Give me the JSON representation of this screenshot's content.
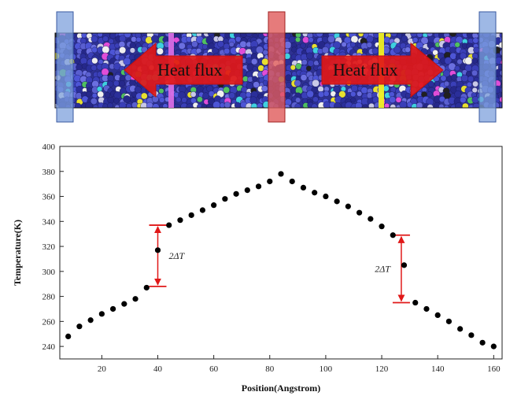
{
  "colors": {
    "atom_palette": [
      "#3a3fb8",
      "#2b2f9a",
      "#4d55d6",
      "#5a5fd0",
      "#26288a",
      "#6b6fe0",
      "#c9c9e8",
      "#f0f0f0",
      "#e04dd8",
      "#3fd0e0",
      "#e8e030",
      "#50c060",
      "#202020"
    ],
    "cold_bath": "#7ea0dc",
    "hot_bath": "#e05a5a",
    "heat_arrow": "#e01818",
    "slab_marker_left": "#e070e8",
    "slab_marker_right": "#f0f020",
    "data_point": "#000000",
    "annotation": "#e01818"
  },
  "slab": {
    "left_arrow_label": "Heat flux",
    "right_arrow_label": "Heat flux",
    "left_arrow_icon": "arrow-left",
    "right_arrow_icon": "arrow-right"
  },
  "chart_data": {
    "type": "scatter",
    "title": "",
    "xlabel": "Position(Angstrom)",
    "ylabel": "Temperature(K)",
    "xlim": [
      5,
      163
    ],
    "ylim": [
      230,
      400
    ],
    "xticks": [
      20,
      40,
      60,
      80,
      100,
      120,
      140,
      160
    ],
    "yticks": [
      240,
      260,
      280,
      300,
      320,
      340,
      360,
      380,
      400
    ],
    "grid": false,
    "series": [
      {
        "x": [
          8,
          12,
          16,
          20,
          24,
          28,
          32,
          36,
          40,
          44,
          48,
          52,
          56,
          60,
          64,
          68,
          72,
          76,
          80,
          84,
          88,
          92,
          96,
          100,
          104,
          108,
          112,
          116,
          120,
          124,
          128,
          132,
          136,
          140,
          144,
          148,
          152,
          156,
          160
        ],
        "y": [
          248,
          256,
          261,
          266,
          270,
          274,
          278,
          287,
          317,
          337,
          341,
          345,
          349,
          353,
          358,
          362,
          365,
          368,
          372,
          378,
          372,
          367,
          363,
          360,
          356,
          352,
          347,
          342,
          336,
          329,
          305,
          275,
          270,
          265,
          260,
          254,
          249,
          243,
          240
        ]
      }
    ],
    "annotations": [
      {
        "label": "2ΔT",
        "x": 40,
        "y_low": 288,
        "y_high": 337
      },
      {
        "label": "2ΔT",
        "x": 127,
        "y_low": 275,
        "y_high": 329
      }
    ]
  }
}
